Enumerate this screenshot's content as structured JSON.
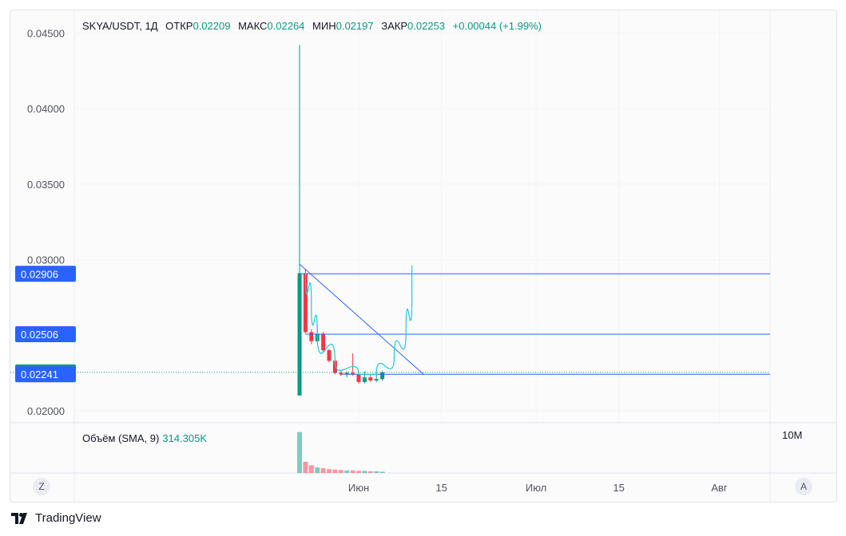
{
  "legend": {
    "symbol": "SKYA/USDT, 1Д",
    "open_label": "ОТКР",
    "open_value": "0.02209",
    "high_label": "МАКС",
    "high_value": "0.02264",
    "low_label": "МИН",
    "low_value": "0.02197",
    "close_label": "ЗАКР",
    "close_value": "0.02253",
    "change": "+0.00044 (+1.99%)"
  },
  "volume_legend": {
    "label": "Объём (SMA, 9)",
    "value": "314.305K"
  },
  "volume_axis_label": "10M",
  "brand": "TradingView",
  "buttons": {
    "left": "Z",
    "right": "A"
  },
  "colors": {
    "up": "#089981",
    "down": "#f23645",
    "line": "#2962ff",
    "curve": "#26c6da",
    "label_blue": "#2962ff",
    "label_green": "#089981"
  },
  "chart_data": {
    "type": "candlestick",
    "title": "",
    "xlabel": "",
    "ylabel": "",
    "ylim": [
      0.0192,
      0.0465
    ],
    "y_ticks": [
      "0.04500",
      "0.04000",
      "0.03500",
      "0.03000",
      "0.02000"
    ],
    "x_ticks": [
      {
        "label": "Июн",
        "date": "2024-06-01"
      },
      {
        "label": "15",
        "date": "2024-06-15"
      },
      {
        "label": "Июл",
        "date": "2024-07-01"
      },
      {
        "label": "15",
        "date": "2024-07-15"
      },
      {
        "label": "Авг",
        "date": "2024-08-01"
      }
    ],
    "candles": [
      {
        "date": "2024-05-22",
        "open": 0.021,
        "high": 0.0442,
        "low": 0.021,
        "close": 0.0291
      },
      {
        "date": "2024-05-23",
        "open": 0.0291,
        "high": 0.0294,
        "low": 0.0251,
        "close": 0.0252
      },
      {
        "date": "2024-05-24",
        "open": 0.0252,
        "high": 0.0254,
        "low": 0.0244,
        "close": 0.0246
      },
      {
        "date": "2024-05-25",
        "open": 0.0246,
        "high": 0.0257,
        "low": 0.0245,
        "close": 0.0251
      },
      {
        "date": "2024-05-26",
        "open": 0.0251,
        "high": 0.0252,
        "low": 0.0239,
        "close": 0.024
      },
      {
        "date": "2024-05-27",
        "open": 0.024,
        "high": 0.0241,
        "low": 0.0232,
        "close": 0.0233
      },
      {
        "date": "2024-05-28",
        "open": 0.0233,
        "high": 0.0234,
        "low": 0.0224,
        "close": 0.0225
      },
      {
        "date": "2024-05-29",
        "open": 0.0225,
        "high": 0.0227,
        "low": 0.0223,
        "close": 0.0224
      },
      {
        "date": "2024-05-30",
        "open": 0.0224,
        "high": 0.0226,
        "low": 0.0222,
        "close": 0.0225
      },
      {
        "date": "2024-05-31",
        "open": 0.0225,
        "high": 0.0238,
        "low": 0.0223,
        "close": 0.0224
      },
      {
        "date": "2024-06-01",
        "open": 0.0224,
        "high": 0.0225,
        "low": 0.0218,
        "close": 0.0219
      },
      {
        "date": "2024-06-02",
        "open": 0.0219,
        "high": 0.0226,
        "low": 0.0218,
        "close": 0.0222
      },
      {
        "date": "2024-06-03",
        "open": 0.0222,
        "high": 0.0224,
        "low": 0.0219,
        "close": 0.022
      },
      {
        "date": "2024-06-04",
        "open": 0.022,
        "high": 0.0226,
        "low": 0.0219,
        "close": 0.0221
      },
      {
        "date": "2024-06-05",
        "open": 0.02209,
        "high": 0.02264,
        "low": 0.02197,
        "close": 0.02253
      }
    ],
    "volume": [
      {
        "date": "2024-05-22",
        "value": 9.5,
        "dir": "up"
      },
      {
        "date": "2024-05-23",
        "value": 2.6,
        "dir": "down"
      },
      {
        "date": "2024-05-24",
        "value": 1.8,
        "dir": "down"
      },
      {
        "date": "2024-05-25",
        "value": 1.3,
        "dir": "up"
      },
      {
        "date": "2024-05-26",
        "value": 1.1,
        "dir": "down"
      },
      {
        "date": "2024-05-27",
        "value": 0.9,
        "dir": "down"
      },
      {
        "date": "2024-05-28",
        "value": 0.8,
        "dir": "down"
      },
      {
        "date": "2024-05-29",
        "value": 0.7,
        "dir": "down"
      },
      {
        "date": "2024-05-30",
        "value": 0.6,
        "dir": "up"
      },
      {
        "date": "2024-05-31",
        "value": 0.6,
        "dir": "down"
      },
      {
        "date": "2024-06-01",
        "value": 0.5,
        "dir": "down"
      },
      {
        "date": "2024-06-02",
        "value": 0.5,
        "dir": "up"
      },
      {
        "date": "2024-06-03",
        "value": 0.4,
        "dir": "down"
      },
      {
        "date": "2024-06-04",
        "value": 0.4,
        "dir": "up"
      },
      {
        "date": "2024-06-05",
        "value": 0.3,
        "dir": "up"
      }
    ],
    "price_labels": [
      {
        "text": "0.02906",
        "price": 0.02906,
        "color": "blue"
      },
      {
        "text": "0.02506",
        "price": 0.02506,
        "color": "blue"
      },
      {
        "text": "0.02253",
        "price": 0.02253,
        "color": "green"
      },
      {
        "text": "0.02241",
        "price": 0.02241,
        "color": "blue"
      }
    ],
    "drawings": {
      "horizontal_rays": [
        {
          "date": "2024-05-22",
          "price": 0.02906
        },
        {
          "date": "2024-05-23",
          "price": 0.02506
        },
        {
          "date": "2024-05-29",
          "price": 0.02241
        }
      ],
      "trend_line": {
        "from": {
          "date": "2024-05-22",
          "price": 0.0297
        },
        "to": {
          "date": "2024-06-12",
          "price": 0.0224
        }
      },
      "curve": [
        {
          "date": "2024-05-23",
          "price": 0.0292
        },
        {
          "date": "2024-05-24",
          "price": 0.027
        },
        {
          "date": "2024-05-25",
          "price": 0.025
        },
        {
          "date": "2024-05-28",
          "price": 0.0232
        },
        {
          "date": "2024-06-01",
          "price": 0.0224
        },
        {
          "date": "2024-06-04",
          "price": 0.0224
        },
        {
          "date": "2024-06-07",
          "price": 0.0235
        },
        {
          "date": "2024-06-09",
          "price": 0.0252
        },
        {
          "date": "2024-06-10",
          "price": 0.0275
        },
        {
          "date": "2024-06-10",
          "price": 0.0296
        }
      ]
    }
  }
}
